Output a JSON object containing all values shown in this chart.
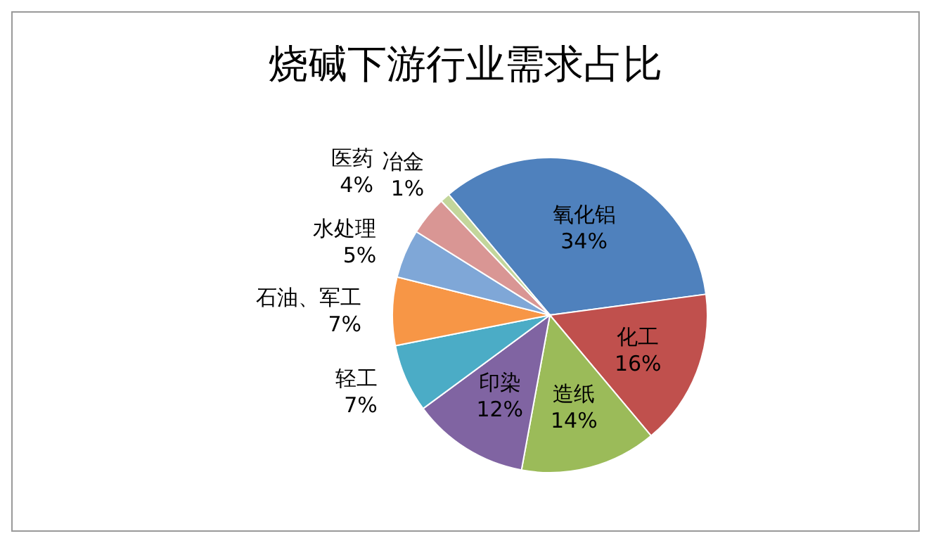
{
  "chart_data": {
    "type": "pie",
    "title": "烧碱下游行业需求占比",
    "categories": [
      "氧化铝",
      "化工",
      "造纸",
      "印染",
      "轻工",
      "石油、军工",
      "水处理",
      "医药",
      "冶金"
    ],
    "values": [
      34,
      16,
      14,
      12,
      7,
      7,
      5,
      4,
      1
    ],
    "value_labels": [
      "34%",
      "16%",
      "14%",
      "12%",
      "7%",
      "7%",
      "5%",
      "4%",
      "1%"
    ],
    "colors": [
      "#4f81bd",
      "#c0504d",
      "#9bbb59",
      "#8064a2",
      "#4bacc6",
      "#f79646",
      "#7fa7d7",
      "#d99694",
      "#c3d69b"
    ],
    "legend": false
  }
}
